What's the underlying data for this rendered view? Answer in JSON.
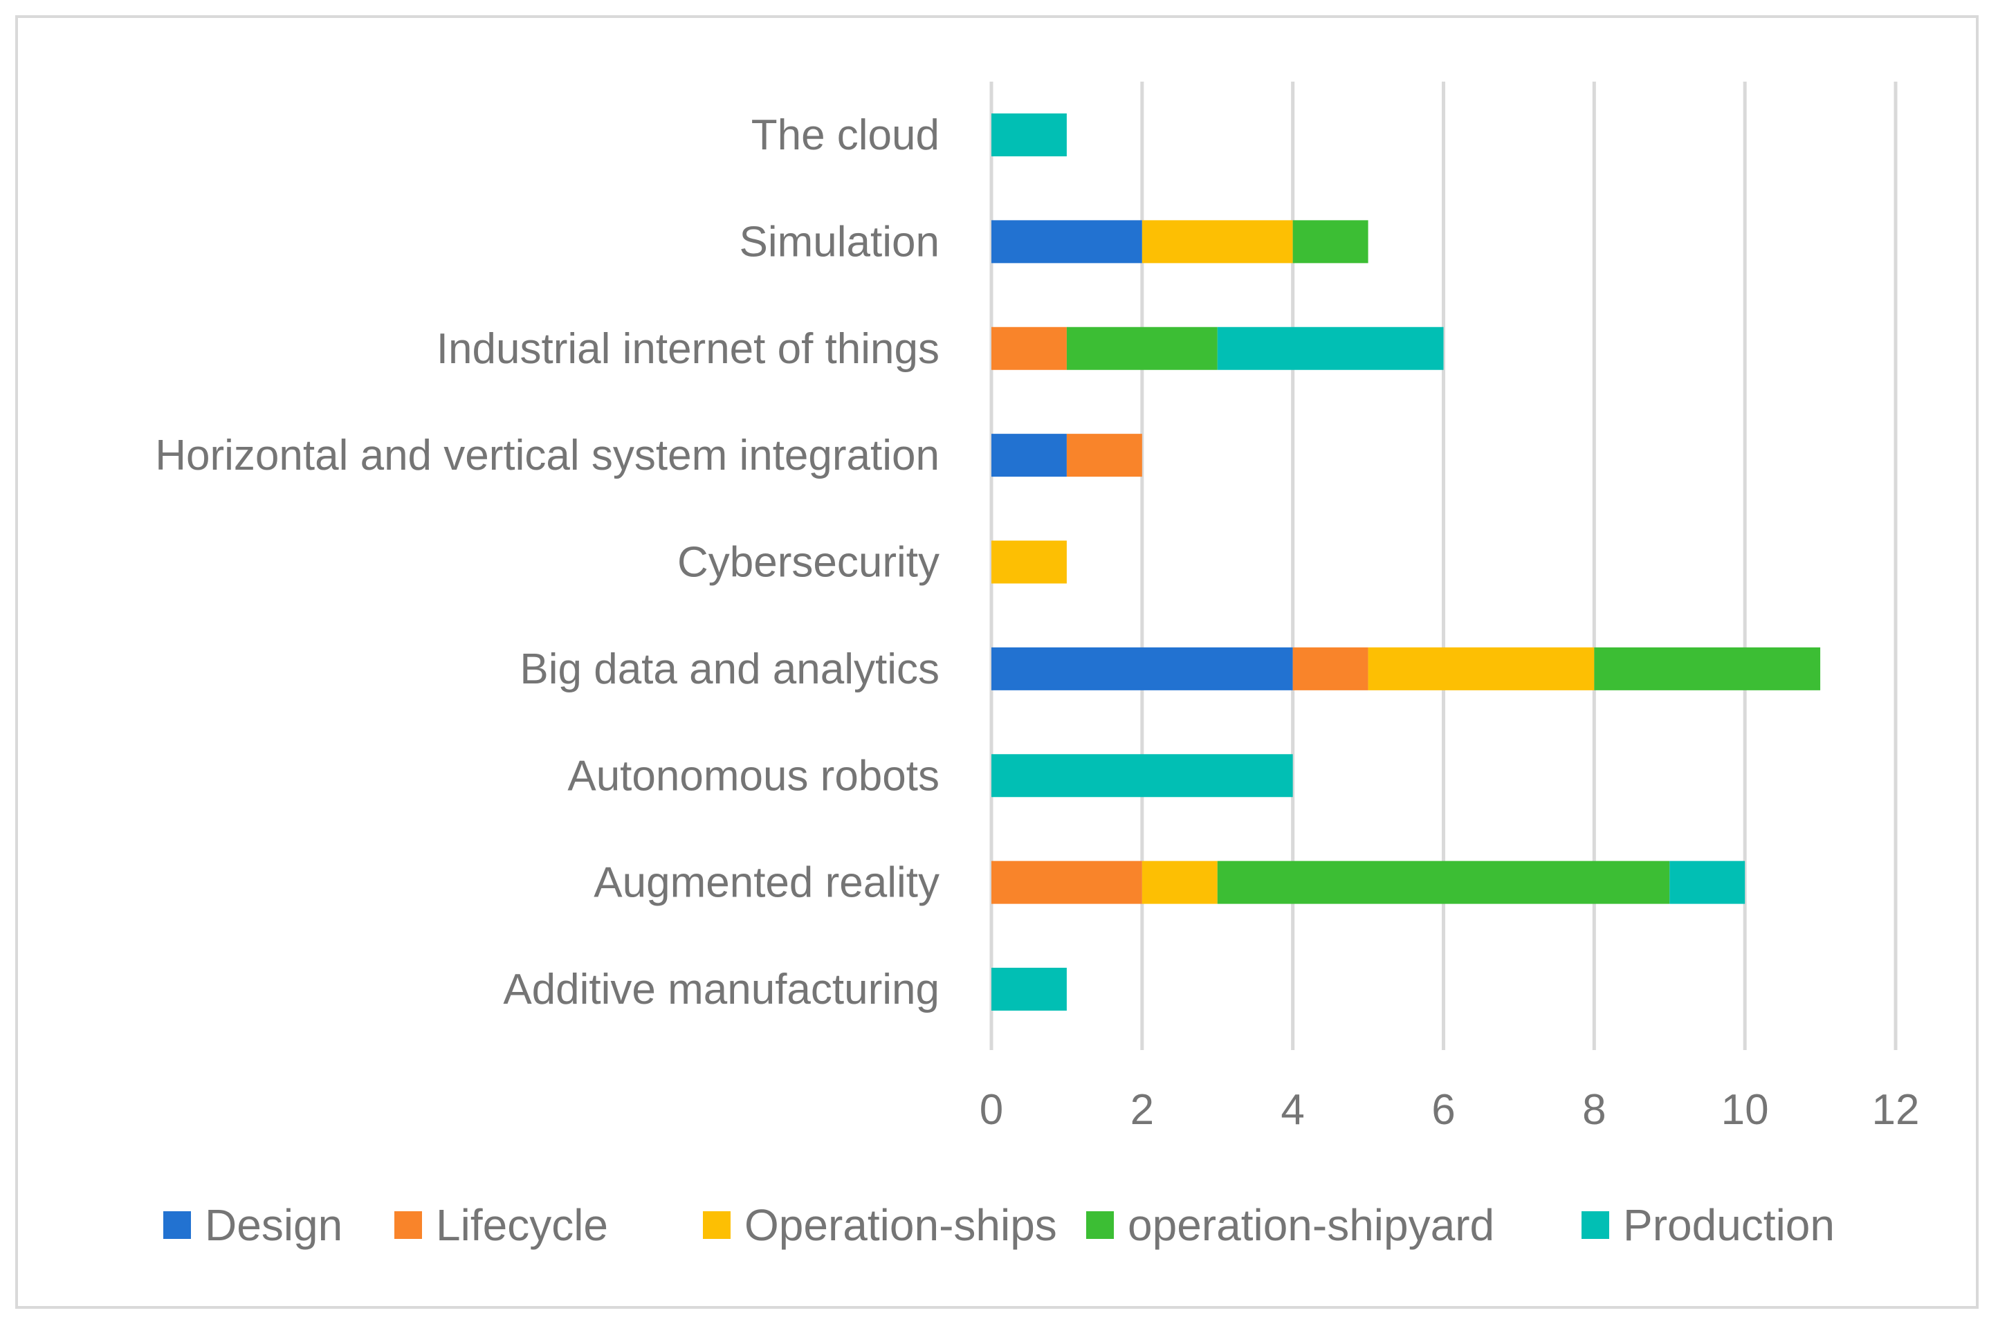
{
  "chart_data": {
    "type": "bar",
    "orientation": "horizontal",
    "stacked": true,
    "categories": [
      "Additive manufacturing",
      "Augmented reality",
      "Autonomous robots",
      "Big data and analytics",
      "Cybersecurity",
      "Horizontal and vertical system integration",
      "Industrial internet of things",
      "Simulation",
      "The cloud"
    ],
    "series": [
      {
        "name": "Design",
        "color": "#2272d1",
        "values": [
          0,
          0,
          0,
          4,
          0,
          1,
          0,
          2,
          0
        ]
      },
      {
        "name": "Lifecycle",
        "color": "#f9842a",
        "values": [
          0,
          2,
          0,
          1,
          0,
          1,
          1,
          0,
          0
        ]
      },
      {
        "name": "Operation-ships",
        "color": "#fdbf03",
        "values": [
          0,
          1,
          0,
          3,
          1,
          0,
          0,
          2,
          0
        ]
      },
      {
        "name": "operation-shipyard",
        "color": "#3cbe34",
        "values": [
          0,
          6,
          0,
          3,
          0,
          0,
          2,
          1,
          0
        ]
      },
      {
        "name": "Production",
        "color": "#01bfb4",
        "values": [
          1,
          1,
          4,
          0,
          0,
          0,
          3,
          0,
          1
        ]
      }
    ],
    "xlim": [
      0,
      12
    ],
    "xticks": [
      "0",
      "2",
      "4",
      "6",
      "8",
      "10",
      "12"
    ],
    "grid": true,
    "legend": "bottom",
    "title": "",
    "xlabel": "",
    "ylabel": ""
  }
}
